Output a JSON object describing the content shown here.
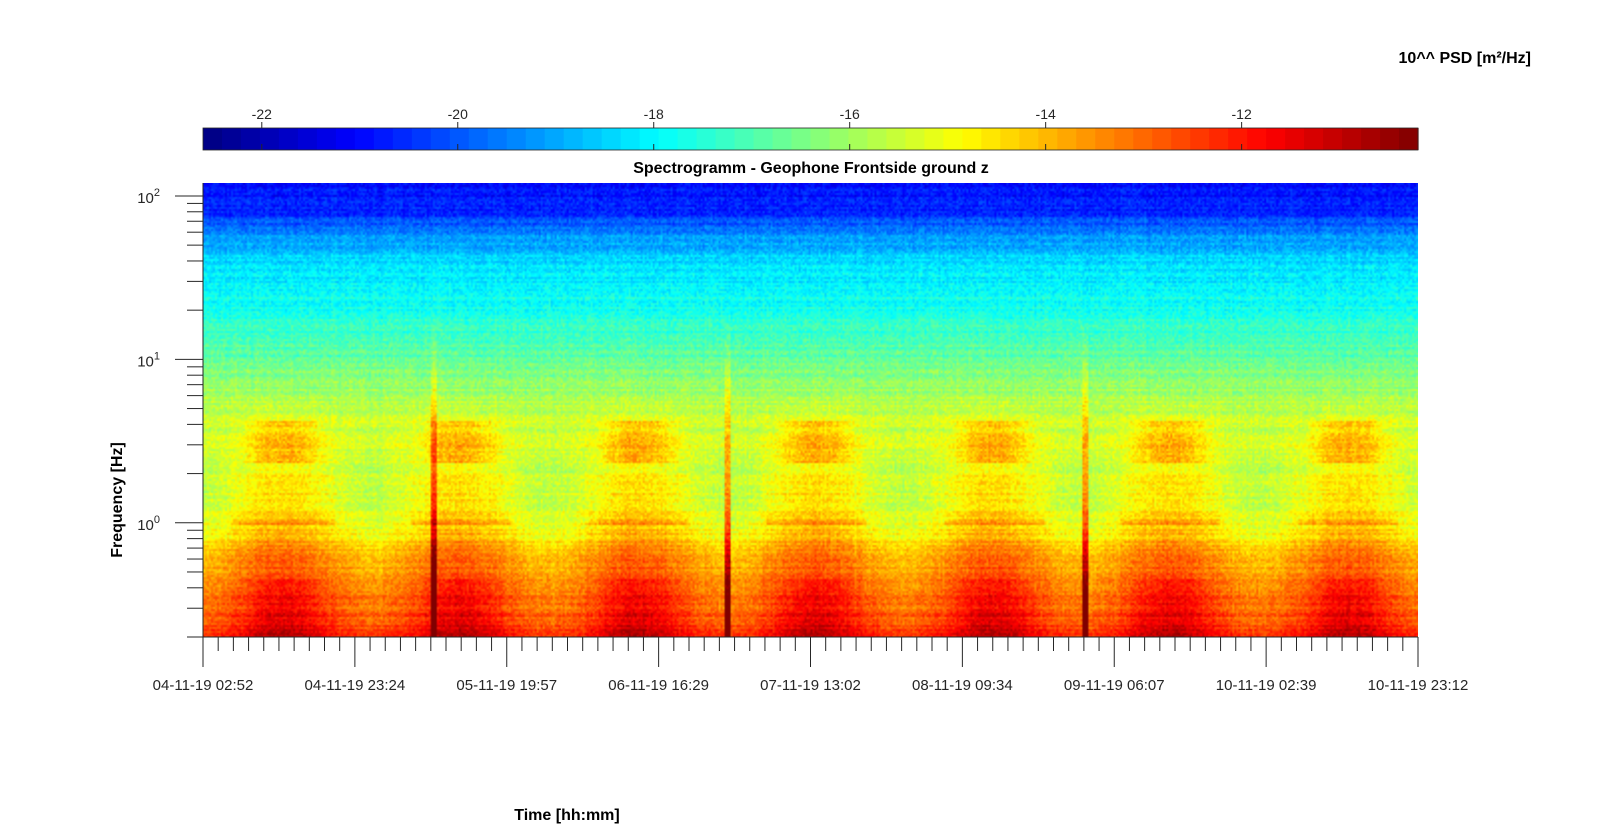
{
  "chart_data": {
    "type": "heatmap",
    "title": "Spectrogramm - Geophone Frontside ground z",
    "xlabel": "Time [hh:mm]",
    "ylabel": "Frequency [Hz]",
    "colorbar": {
      "label": "10^^ PSD [m²/Hz]",
      "range": [
        -22.6,
        -10.2
      ],
      "ticks": [
        -22,
        -20,
        -18,
        -16,
        -14,
        -12
      ],
      "tick_labels": [
        "-22",
        "-20",
        "-18",
        "-16",
        "-14",
        "-12"
      ],
      "colormap": "jet",
      "location": "top"
    },
    "x": {
      "scale": "time",
      "tick_labels": [
        "04-11-19 02:52",
        "04-11-19 23:24",
        "05-11-19 19:57",
        "06-11-19 16:29",
        "07-11-19 13:02",
        "08-11-19 09:34",
        "09-11-19 06:07",
        "10-11-19 02:39",
        "10-11-19 23:12"
      ]
    },
    "y": {
      "scale": "log",
      "range": [
        0.2,
        120
      ],
      "ticks": [
        1,
        10,
        100
      ],
      "tick_labels": [
        {
          "base": "10",
          "exp": "0"
        },
        {
          "base": "10",
          "exp": "1"
        },
        {
          "base": "10",
          "exp": "2"
        }
      ]
    },
    "psd_profile": {
      "freq_hz": [
        0.2,
        0.3,
        0.5,
        0.7,
        0.8,
        1.0,
        1.5,
        2.0,
        3.0,
        5.0,
        8.0,
        12,
        20,
        40,
        60,
        80,
        120
      ],
      "log10_psd": [
        -12.0,
        -12.6,
        -13.2,
        -13.8,
        -14.4,
        -14.7,
        -15.0,
        -15.2,
        -15.1,
        -15.6,
        -16.4,
        -17.0,
        -17.6,
        -18.4,
        -19.4,
        -20.6,
        -21.0
      ]
    },
    "events": [
      {
        "time_days": 1.3,
        "note": "vertical spike"
      },
      {
        "time_days": 2.95,
        "note": "vertical spike"
      },
      {
        "time_days": 4.97,
        "note": "vertical spike"
      }
    ]
  }
}
